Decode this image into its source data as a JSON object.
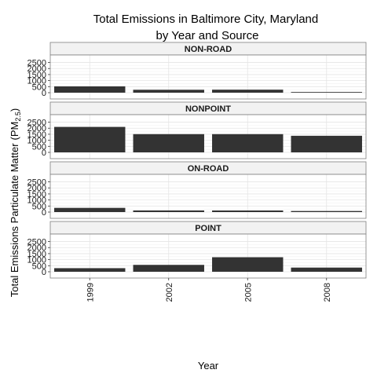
{
  "chart_data": {
    "type": "bar",
    "title_line1": "Total Emissions in Baltimore City, Maryland",
    "title_line2": "by Year and Source",
    "xlabel": "Year",
    "ylabel_main": "Total Emissions Particulate Matter",
    "ylabel_unit_base": "(PM",
    "ylabel_unit_sub": "2.5",
    "ylabel_unit_close": ")",
    "categories": [
      "1999",
      "2002",
      "2005",
      "2008"
    ],
    "ylim": [
      0,
      2600
    ],
    "yticks": [
      0,
      500,
      1000,
      1500,
      2000,
      2500
    ],
    "grid": true,
    "bar_color": "#333333",
    "panels": [
      {
        "name": "NON-ROAD",
        "values": [
          522.94,
          240.85,
          248.93,
          55.82
        ]
      },
      {
        "name": "NONPOINT",
        "values": [
          2107.63,
          1509.5,
          1509.5,
          1373.21
        ]
      },
      {
        "name": "ON-ROAD",
        "values": [
          346.82,
          134.31,
          130.43,
          88.28
        ]
      },
      {
        "name": "POINT",
        "values": [
          296.8,
          569.26,
          1202.49,
          344.98
        ]
      }
    ]
  }
}
